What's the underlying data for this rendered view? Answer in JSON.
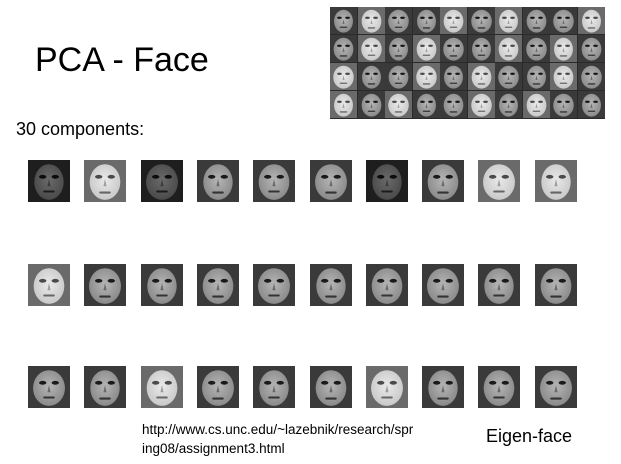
{
  "slide": {
    "title": "PCA - Face",
    "subtitle": "30 components:",
    "url_line1": "http://www.cs.unc.edu/~lazebnik/research/spr",
    "url_line2": "ing08/assignment3.html",
    "caption": "Eigen-face"
  },
  "mosaic": {
    "rows": 4,
    "cols": 10,
    "label": "training faces"
  },
  "eigenfaces": [
    {
      "row": 0,
      "col": 0,
      "tone": "dark"
    },
    {
      "row": 0,
      "col": 1,
      "tone": "light"
    },
    {
      "row": 0,
      "col": 2,
      "tone": "dark"
    },
    {
      "row": 0,
      "col": 3,
      "tone": "mid"
    },
    {
      "row": 0,
      "col": 4,
      "tone": "mid"
    },
    {
      "row": 0,
      "col": 5,
      "tone": "mid"
    },
    {
      "row": 0,
      "col": 6,
      "tone": "dark"
    },
    {
      "row": 0,
      "col": 7,
      "tone": "mid"
    },
    {
      "row": 0,
      "col": 8,
      "tone": "light"
    },
    {
      "row": 0,
      "col": 9,
      "tone": "light"
    },
    {
      "row": 1,
      "col": 0,
      "tone": "light"
    },
    {
      "row": 1,
      "col": 1,
      "tone": "mid"
    },
    {
      "row": 1,
      "col": 2,
      "tone": "mid"
    },
    {
      "row": 1,
      "col": 3,
      "tone": "mid"
    },
    {
      "row": 1,
      "col": 4,
      "tone": "mid"
    },
    {
      "row": 1,
      "col": 5,
      "tone": "mid"
    },
    {
      "row": 1,
      "col": 6,
      "tone": "mid"
    },
    {
      "row": 1,
      "col": 7,
      "tone": "mid"
    },
    {
      "row": 1,
      "col": 8,
      "tone": "mid"
    },
    {
      "row": 1,
      "col": 9,
      "tone": "mid"
    },
    {
      "row": 2,
      "col": 0,
      "tone": "mid"
    },
    {
      "row": 2,
      "col": 1,
      "tone": "mid"
    },
    {
      "row": 2,
      "col": 2,
      "tone": "light"
    },
    {
      "row": 2,
      "col": 3,
      "tone": "mid"
    },
    {
      "row": 2,
      "col": 4,
      "tone": "mid"
    },
    {
      "row": 2,
      "col": 5,
      "tone": "mid"
    },
    {
      "row": 2,
      "col": 6,
      "tone": "light"
    },
    {
      "row": 2,
      "col": 7,
      "tone": "mid"
    },
    {
      "row": 2,
      "col": 8,
      "tone": "mid"
    },
    {
      "row": 2,
      "col": 9,
      "tone": "mid"
    }
  ],
  "colors": {
    "background": "#ffffff",
    "text": "#000000",
    "mosaic_bg": "#2a2a2a"
  }
}
